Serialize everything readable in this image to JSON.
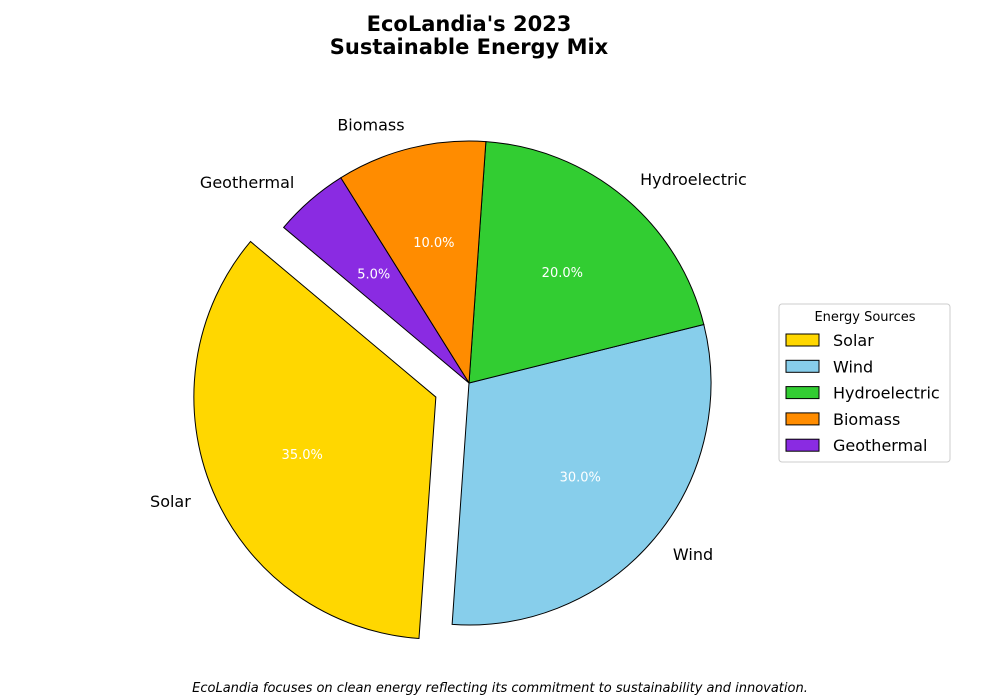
{
  "chart_data": {
    "type": "pie",
    "title_lines": [
      "EcoLandia's 2023",
      "Sustainable Energy Mix"
    ],
    "categories": [
      "Solar",
      "Wind",
      "Hydroelectric",
      "Biomass",
      "Geothermal"
    ],
    "values": [
      35,
      30,
      20,
      10,
      5
    ],
    "percent_labels": [
      "35.0%",
      "30.0%",
      "20.0%",
      "10.0%",
      "5.0%"
    ],
    "colors": [
      "#ffd700",
      "#87ceeb",
      "#32cd32",
      "#ff8c00",
      "#8a2be2"
    ],
    "exploded": [
      "Solar"
    ],
    "start_angle_deg": 140,
    "direction": "counterclockwise",
    "legend": {
      "title": "Energy Sources",
      "placement": "center-right"
    },
    "caption": "EcoLandia focuses on clean energy reflecting its commitment to sustainability and innovation."
  }
}
